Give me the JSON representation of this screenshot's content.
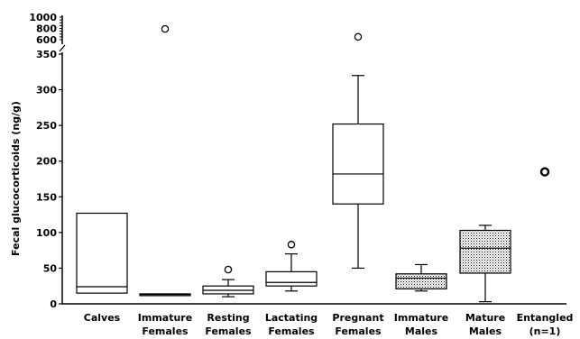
{
  "chart_data": {
    "type": "boxplot",
    "ylabel": "Fecal glucocorticoids (ng/g)",
    "y_axis": {
      "lower_segment": {
        "range": [
          0,
          350
        ],
        "ticks": [
          0,
          50,
          100,
          150,
          200,
          250,
          300,
          350
        ]
      },
      "broken_segment": {
        "ticks": [
          600,
          800,
          1000
        ]
      }
    },
    "categories": [
      [
        "Calves"
      ],
      [
        "Immature",
        "Females"
      ],
      [
        "Resting",
        "Females"
      ],
      [
        "Lactating",
        "Females"
      ],
      [
        "Pregnant",
        "Females"
      ],
      [
        "Immature",
        "Males"
      ],
      [
        "Mature",
        "Males"
      ],
      [
        "Entangled",
        "(n=1)"
      ]
    ],
    "boxes": [
      {
        "q1": 15,
        "median": 24,
        "q3": 127,
        "fill": "white"
      },
      {
        "whisker_low": 12,
        "q1": 12,
        "median": 13,
        "q3": 14,
        "whisker_high": 14,
        "outliers": [
          790
        ],
        "fill": "white"
      },
      {
        "whisker_low": 10,
        "q1": 14,
        "median": 19,
        "q3": 25,
        "whisker_high": 34,
        "outliers": [
          48
        ],
        "fill": "white"
      },
      {
        "whisker_low": 18,
        "q1": 25,
        "median": 30,
        "q3": 45,
        "whisker_high": 70,
        "outliers": [
          83
        ],
        "fill": "white"
      },
      {
        "whisker_low": 50,
        "q1": 140,
        "median": 182,
        "q3": 252,
        "whisker_high": 320,
        "outliers": [
          650
        ],
        "fill": "white"
      },
      {
        "whisker_low": 18,
        "q1": 21,
        "median": 36,
        "q3": 42,
        "whisker_high": 55,
        "fill": "stippled"
      },
      {
        "whisker_low": 3,
        "q1": 43,
        "median": 78,
        "q3": 103,
        "whisker_high": 110,
        "fill": "stippled"
      },
      {
        "points": [
          185
        ]
      }
    ]
  }
}
